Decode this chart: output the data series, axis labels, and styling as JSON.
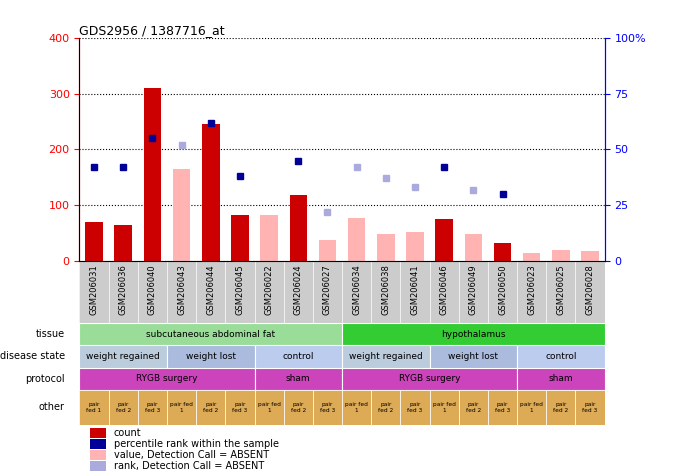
{
  "title": "GDS2956 / 1387716_at",
  "samples": [
    "GSM206031",
    "GSM206036",
    "GSM206040",
    "GSM206043",
    "GSM206044",
    "GSM206045",
    "GSM206022",
    "GSM206024",
    "GSM206027",
    "GSM206034",
    "GSM206038",
    "GSM206041",
    "GSM206046",
    "GSM206049",
    "GSM206050",
    "GSM206023",
    "GSM206025",
    "GSM206028"
  ],
  "count_values": [
    70,
    65,
    310,
    null,
    245,
    82,
    null,
    118,
    null,
    null,
    null,
    null,
    75,
    null,
    32,
    null,
    null,
    null
  ],
  "count_absent": [
    null,
    null,
    null,
    165,
    null,
    null,
    82,
    null,
    38,
    78,
    48,
    52,
    null,
    48,
    null,
    15,
    20,
    18
  ],
  "percentile_present": [
    42,
    42,
    55,
    null,
    62,
    38,
    null,
    45,
    null,
    null,
    null,
    null,
    42,
    null,
    30,
    null,
    null,
    null
  ],
  "percentile_absent": [
    null,
    null,
    null,
    52,
    null,
    null,
    null,
    null,
    22,
    42,
    37,
    33,
    null,
    32,
    null,
    null,
    null,
    null
  ],
  "ylim_left": [
    0,
    400
  ],
  "ylim_right": [
    0,
    100
  ],
  "yticks_left": [
    0,
    100,
    200,
    300,
    400
  ],
  "yticks_right": [
    0,
    25,
    50,
    75,
    100
  ],
  "ytick_labels_right": [
    "0",
    "25",
    "50",
    "75",
    "100%"
  ],
  "color_count": "#cc0000",
  "color_count_absent": "#ffb3b3",
  "color_percentile": "#000099",
  "color_percentile_absent": "#aaaadd",
  "tissue_labels": [
    {
      "text": "subcutaneous abdominal fat",
      "start": 0,
      "end": 8,
      "color": "#99dd99"
    },
    {
      "text": "hypothalamus",
      "start": 9,
      "end": 17,
      "color": "#33cc33"
    }
  ],
  "disease_labels": [
    {
      "text": "weight regained",
      "start": 0,
      "end": 2,
      "color": "#bbccdd"
    },
    {
      "text": "weight lost",
      "start": 3,
      "end": 5,
      "color": "#aabbdd"
    },
    {
      "text": "control",
      "start": 6,
      "end": 8,
      "color": "#bbccee"
    },
    {
      "text": "weight regained",
      "start": 9,
      "end": 11,
      "color": "#bbccdd"
    },
    {
      "text": "weight lost",
      "start": 12,
      "end": 14,
      "color": "#aabbdd"
    },
    {
      "text": "control",
      "start": 15,
      "end": 17,
      "color": "#bbccee"
    }
  ],
  "protocol_labels": [
    {
      "text": "RYGB surgery",
      "start": 0,
      "end": 5,
      "color": "#cc44bb"
    },
    {
      "text": "sham",
      "start": 6,
      "end": 8,
      "color": "#cc44bb"
    },
    {
      "text": "RYGB surgery",
      "start": 9,
      "end": 14,
      "color": "#cc44bb"
    },
    {
      "text": "sham",
      "start": 15,
      "end": 17,
      "color": "#cc44bb"
    }
  ],
  "other_labels": [
    "pair\nfed 1",
    "pair\nfed 2",
    "pair\nfed 3",
    "pair fed\n1",
    "pair\nfed 2",
    "pair\nfed 3",
    "pair fed\n1",
    "pair\nfed 2",
    "pair\nfed 3",
    "pair fed\n1",
    "pair\nfed 2",
    "pair\nfed 3",
    "pair fed\n1",
    "pair\nfed 2",
    "pair\nfed 3",
    "pair fed\n1",
    "pair\nfed 2",
    "pair\nfed 3"
  ],
  "bar_width": 0.6,
  "marker_size": 5,
  "other_color": "#ddaa55",
  "xticklabel_bg": "#cccccc"
}
